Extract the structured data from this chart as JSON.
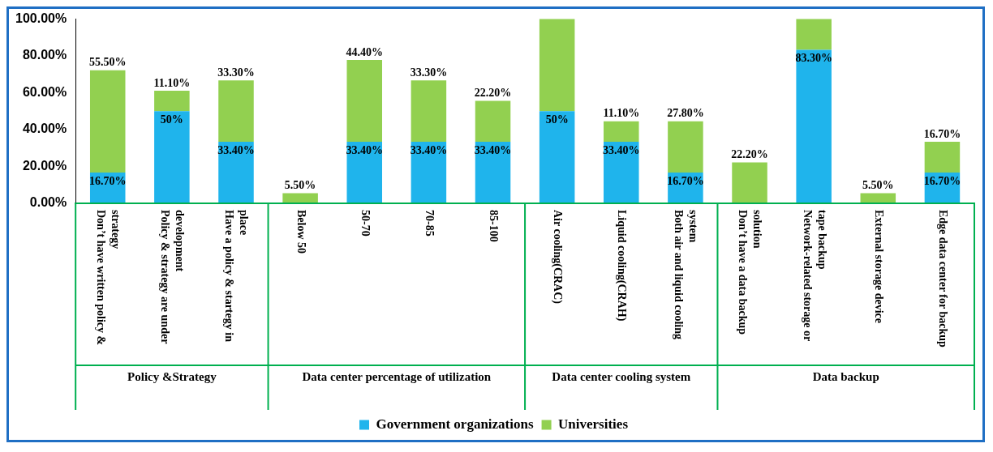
{
  "chart_data": {
    "type": "bar",
    "stacked": true,
    "categories": [
      "Don’t have written policy & strategy",
      "Policy & strategy are under development",
      "Have a policy & startegy in place",
      "Below 50",
      "50-70",
      "70-85",
      "85-100",
      "Air cooling(CRAC)",
      "Liquid cooling(CRAH)",
      "Both air and liquid cooling system",
      "Don’t have a data backup solution",
      "Network-related storage or tape backup",
      "External storage device",
      "Edge data center for backup"
    ],
    "series": [
      {
        "name": "Government organizations",
        "color": "#1fb4ec",
        "values": [
          16.7,
          50,
          33.4,
          0,
          33.4,
          33.4,
          33.4,
          50,
          33.4,
          16.7,
          0,
          83.3,
          0,
          16.7
        ],
        "value_labels": [
          "16.70%",
          "50%",
          "33.40%",
          null,
          "33.40%",
          "33.40%",
          "33.40%",
          "50%",
          "33.40%",
          "16.70%",
          null,
          "83.30%",
          null,
          "16.70%"
        ]
      },
      {
        "name": "Universities",
        "color": "#92d050",
        "values": [
          55.5,
          11.1,
          33.3,
          5.5,
          44.4,
          33.3,
          22.2,
          50,
          11.1,
          27.8,
          22.2,
          16.7,
          5.5,
          16.7
        ],
        "value_labels": [
          "55.50%",
          "11.10%",
          "33.30%",
          "5.50%",
          "44.40%",
          "33.30%",
          "22.20%",
          null,
          "11.10%",
          "27.80%",
          "22.20%",
          null,
          "5.50%",
          "16.70%"
        ]
      }
    ],
    "ylim": [
      0,
      100
    ],
    "yticks": [
      {
        "value": 0,
        "label": "0.00%"
      },
      {
        "value": 20,
        "label": "20.00%"
      },
      {
        "value": 40,
        "label": "40.00%"
      },
      {
        "value": 60,
        "label": "60.00%"
      },
      {
        "value": 80,
        "label": "80.00%"
      },
      {
        "value": 100,
        "label": "100.00%"
      }
    ],
    "grid": false,
    "legend": "bottom",
    "annotations": [
      "Policy &Strategy",
      "Data center percentage of utilization",
      "Data center cooling system",
      "Data backup"
    ]
  }
}
